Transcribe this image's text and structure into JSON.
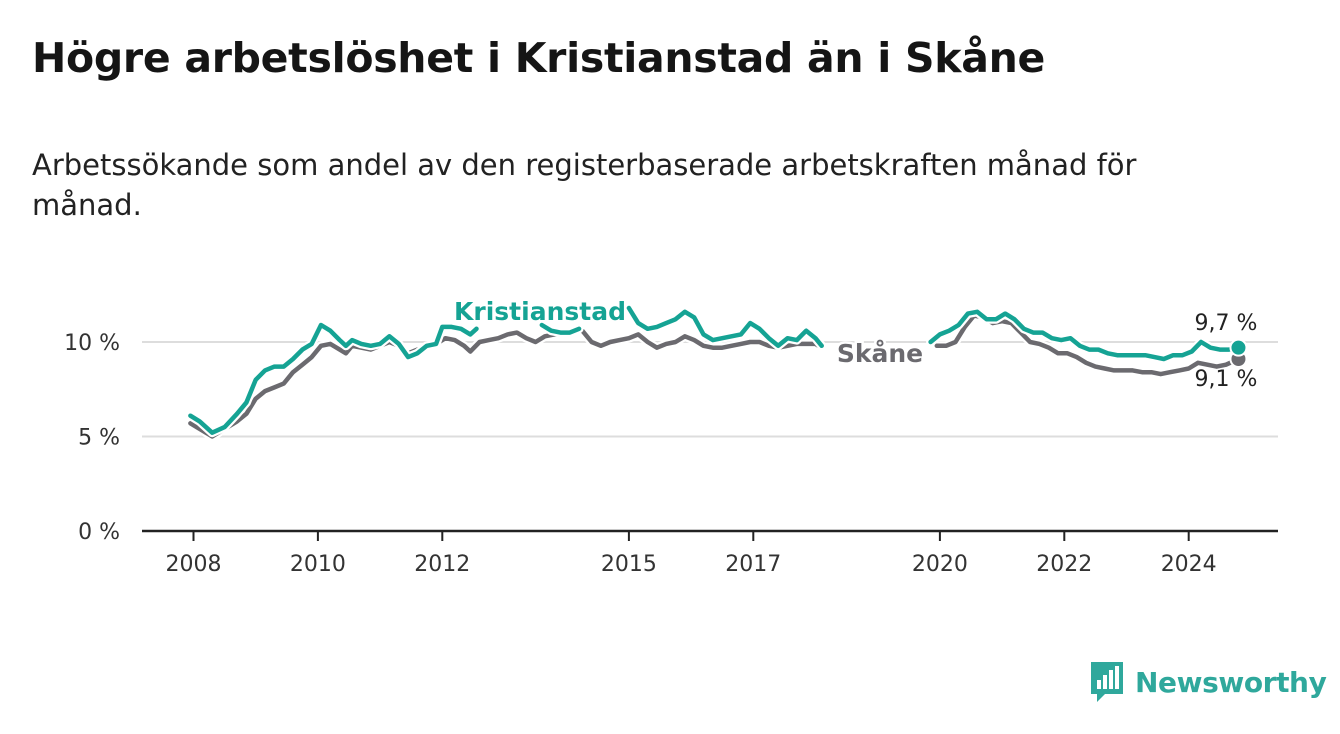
{
  "title": "Högre arbetslöshet i Kristianstad än i Skåne",
  "subtitle": "Arbetssökande som andel av den registerbaserade arbetskraften månad för månad.",
  "brand": {
    "name": "Newsworthy",
    "color": "#2fa89c",
    "icon": "bar-chart-logo-icon"
  },
  "colors": {
    "kristianstad": "#15a394",
    "skane": "#6b6a6f",
    "grid": "#dddddd",
    "axis": "#222222"
  },
  "chart_data": {
    "type": "line",
    "title": "Högre arbetslöshet i Kristianstad än i Skåne",
    "xlabel": "",
    "ylabel": "",
    "xlim": [
      2007.5,
      2025.4
    ],
    "ylim": [
      0,
      12
    ],
    "y_ticks": [
      {
        "value": 0,
        "label": "0 %"
      },
      {
        "value": 5,
        "label": "5 %"
      },
      {
        "value": 10,
        "label": "10 %"
      }
    ],
    "x_ticks": [
      {
        "value": 2008,
        "label": "2008"
      },
      {
        "value": 2010,
        "label": "2010"
      },
      {
        "value": 2012,
        "label": "2012"
      },
      {
        "value": 2015,
        "label": "2015"
      },
      {
        "value": 2017,
        "label": "2017"
      },
      {
        "value": 2020,
        "label": "2020"
      },
      {
        "value": 2022,
        "label": "2022"
      },
      {
        "value": 2024,
        "label": "2024"
      }
    ],
    "grid": true,
    "series": [
      {
        "name": "Kristianstad",
        "label": "Kristianstad",
        "end_label": "9,7 %",
        "end_value": 9.7,
        "segments": [
          [
            [
              2007.95,
              6.1
            ],
            [
              2008.1,
              5.8
            ],
            [
              2008.3,
              5.2
            ],
            [
              2008.5,
              5.5
            ],
            [
              2008.7,
              6.2
            ],
            [
              2008.85,
              6.8
            ],
            [
              2009.0,
              8.0
            ],
            [
              2009.15,
              8.5
            ],
            [
              2009.3,
              8.7
            ],
            [
              2009.45,
              8.7
            ],
            [
              2009.6,
              9.1
            ],
            [
              2009.75,
              9.6
            ],
            [
              2009.9,
              9.9
            ],
            [
              2010.05,
              10.9
            ],
            [
              2010.2,
              10.6
            ],
            [
              2010.35,
              10.1
            ],
            [
              2010.45,
              9.8
            ],
            [
              2010.55,
              10.1
            ],
            [
              2010.7,
              9.9
            ],
            [
              2010.85,
              9.8
            ],
            [
              2011.0,
              9.9
            ],
            [
              2011.15,
              10.3
            ],
            [
              2011.3,
              9.9
            ],
            [
              2011.45,
              9.2
            ],
            [
              2011.6,
              9.4
            ],
            [
              2011.75,
              9.8
            ],
            [
              2011.9,
              9.9
            ],
            [
              2012.0,
              10.8
            ],
            [
              2012.15,
              10.8
            ],
            [
              2012.3,
              10.7
            ],
            [
              2012.45,
              10.4
            ],
            [
              2012.55,
              10.7
            ]
          ],
          [
            [
              2013.6,
              10.9
            ],
            [
              2013.75,
              10.6
            ],
            [
              2013.9,
              10.5
            ],
            [
              2014.05,
              10.5
            ],
            [
              2014.2,
              10.7
            ]
          ],
          [
            [
              2015.0,
              11.8
            ],
            [
              2015.15,
              11.0
            ],
            [
              2015.3,
              10.7
            ],
            [
              2015.45,
              10.8
            ],
            [
              2015.6,
              11.0
            ],
            [
              2015.75,
              11.2
            ],
            [
              2015.9,
              11.6
            ],
            [
              2016.05,
              11.3
            ],
            [
              2016.2,
              10.4
            ],
            [
              2016.35,
              10.1
            ],
            [
              2016.5,
              10.2
            ],
            [
              2016.65,
              10.3
            ],
            [
              2016.8,
              10.4
            ],
            [
              2016.95,
              11.0
            ],
            [
              2017.1,
              10.7
            ],
            [
              2017.25,
              10.2
            ],
            [
              2017.4,
              9.8
            ],
            [
              2017.55,
              10.2
            ],
            [
              2017.7,
              10.1
            ],
            [
              2017.85,
              10.6
            ],
            [
              2018.0,
              10.2
            ],
            [
              2018.1,
              9.8
            ]
          ],
          [
            [
              2019.85,
              10.0
            ],
            [
              2020.0,
              10.4
            ],
            [
              2020.15,
              10.6
            ],
            [
              2020.3,
              10.9
            ],
            [
              2020.45,
              11.5
            ],
            [
              2020.6,
              11.6
            ],
            [
              2020.75,
              11.2
            ],
            [
              2020.9,
              11.2
            ],
            [
              2021.05,
              11.5
            ],
            [
              2021.2,
              11.2
            ],
            [
              2021.35,
              10.7
            ],
            [
              2021.5,
              10.5
            ],
            [
              2021.65,
              10.5
            ],
            [
              2021.8,
              10.2
            ],
            [
              2021.95,
              10.1
            ],
            [
              2022.1,
              10.2
            ],
            [
              2022.25,
              9.8
            ],
            [
              2022.4,
              9.6
            ],
            [
              2022.55,
              9.6
            ],
            [
              2022.7,
              9.4
            ],
            [
              2022.85,
              9.3
            ],
            [
              2023.0,
              9.3
            ],
            [
              2023.15,
              9.3
            ],
            [
              2023.3,
              9.3
            ],
            [
              2023.45,
              9.2
            ],
            [
              2023.6,
              9.1
            ],
            [
              2023.75,
              9.3
            ],
            [
              2023.9,
              9.3
            ],
            [
              2024.05,
              9.5
            ],
            [
              2024.2,
              10.0
            ],
            [
              2024.35,
              9.7
            ],
            [
              2024.5,
              9.6
            ],
            [
              2024.65,
              9.6
            ],
            [
              2024.8,
              9.7
            ]
          ]
        ]
      },
      {
        "name": "Skåne",
        "label": "Skåne",
        "end_label": "9,1 %",
        "end_value": 9.1,
        "segments": [
          [
            [
              2007.95,
              5.7
            ],
            [
              2008.1,
              5.4
            ],
            [
              2008.3,
              5.0
            ],
            [
              2008.5,
              5.4
            ],
            [
              2008.7,
              5.8
            ],
            [
              2008.85,
              6.2
            ],
            [
              2009.0,
              7.0
            ],
            [
              2009.15,
              7.4
            ],
            [
              2009.3,
              7.6
            ],
            [
              2009.45,
              7.8
            ],
            [
              2009.6,
              8.4
            ],
            [
              2009.75,
              8.8
            ],
            [
              2009.9,
              9.2
            ],
            [
              2010.05,
              9.8
            ],
            [
              2010.2,
              9.9
            ],
            [
              2010.35,
              9.6
            ],
            [
              2010.45,
              9.4
            ],
            [
              2010.55,
              9.8
            ],
            [
              2010.7,
              9.7
            ],
            [
              2010.85,
              9.6
            ],
            [
              2011.0,
              9.8
            ],
            [
              2011.15,
              10.0
            ],
            [
              2011.3,
              9.8
            ],
            [
              2011.45,
              9.4
            ],
            [
              2011.6,
              9.6
            ],
            [
              2011.75,
              9.7
            ],
            [
              2011.9,
              9.9
            ],
            [
              2012.05,
              10.2
            ],
            [
              2012.2,
              10.1
            ],
            [
              2012.35,
              9.8
            ],
            [
              2012.45,
              9.5
            ],
            [
              2012.6,
              10.0
            ],
            [
              2012.75,
              10.1
            ],
            [
              2012.9,
              10.2
            ],
            [
              2013.05,
              10.4
            ],
            [
              2013.2,
              10.5
            ],
            [
              2013.35,
              10.2
            ],
            [
              2013.5,
              10.0
            ],
            [
              2013.65,
              10.3
            ],
            [
              2013.8,
              10.4
            ],
            [
              2013.95,
              10.5
            ],
            [
              2014.1,
              10.6
            ],
            [
              2014.25,
              10.6
            ],
            [
              2014.4,
              10.0
            ],
            [
              2014.55,
              9.8
            ],
            [
              2014.7,
              10.0
            ],
            [
              2014.85,
              10.1
            ],
            [
              2015.0,
              10.2
            ],
            [
              2015.15,
              10.4
            ],
            [
              2015.3,
              10.0
            ],
            [
              2015.45,
              9.7
            ],
            [
              2015.6,
              9.9
            ],
            [
              2015.75,
              10.0
            ],
            [
              2015.9,
              10.3
            ],
            [
              2016.05,
              10.1
            ],
            [
              2016.2,
              9.8
            ],
            [
              2016.35,
              9.7
            ],
            [
              2016.5,
              9.7
            ],
            [
              2016.65,
              9.8
            ],
            [
              2016.8,
              9.9
            ],
            [
              2016.95,
              10.0
            ],
            [
              2017.1,
              10.0
            ],
            [
              2017.25,
              9.8
            ],
            [
              2017.4,
              9.7
            ],
            [
              2017.55,
              9.8
            ],
            [
              2017.7,
              9.9
            ],
            [
              2017.85,
              9.9
            ],
            [
              2018.0,
              9.9
            ],
            [
              2018.1,
              9.7
            ]
          ],
          [
            [
              2019.95,
              9.8
            ],
            [
              2020.1,
              9.8
            ],
            [
              2020.25,
              10.0
            ],
            [
              2020.4,
              10.8
            ],
            [
              2020.55,
              11.4
            ],
            [
              2020.7,
              11.3
            ],
            [
              2020.85,
              11.0
            ],
            [
              2021.0,
              11.1
            ],
            [
              2021.15,
              11.0
            ],
            [
              2021.3,
              10.5
            ],
            [
              2021.45,
              10.0
            ],
            [
              2021.6,
              9.9
            ],
            [
              2021.75,
              9.7
            ],
            [
              2021.9,
              9.4
            ],
            [
              2022.05,
              9.4
            ],
            [
              2022.2,
              9.2
            ],
            [
              2022.35,
              8.9
            ],
            [
              2022.5,
              8.7
            ],
            [
              2022.65,
              8.6
            ],
            [
              2022.8,
              8.5
            ],
            [
              2022.95,
              8.5
            ],
            [
              2023.1,
              8.5
            ],
            [
              2023.25,
              8.4
            ],
            [
              2023.4,
              8.4
            ],
            [
              2023.55,
              8.3
            ],
            [
              2023.7,
              8.4
            ],
            [
              2023.85,
              8.5
            ],
            [
              2024.0,
              8.6
            ],
            [
              2024.15,
              8.9
            ],
            [
              2024.3,
              8.8
            ],
            [
              2024.45,
              8.7
            ],
            [
              2024.6,
              8.8
            ],
            [
              2024.8,
              9.1
            ]
          ]
        ]
      }
    ]
  }
}
